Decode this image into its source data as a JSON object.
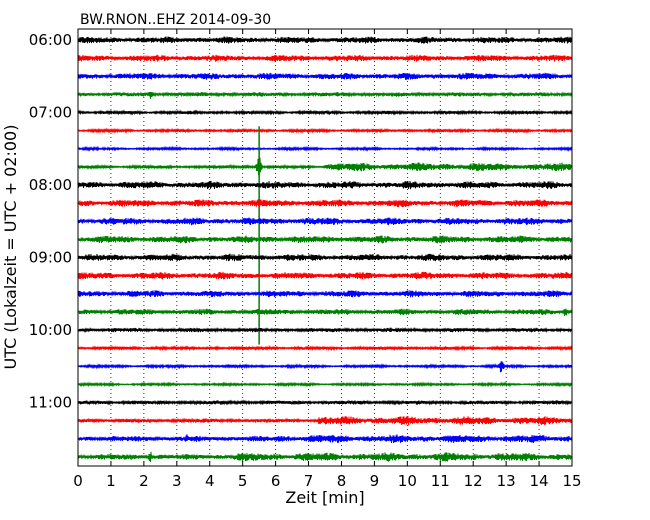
{
  "chart_data": {
    "type": "line",
    "title": "BW.RNON..EHZ 2014-09-30",
    "xlabel": "Zeit  [min]",
    "ylabel": "UTC (Lokalzeit = UTC + 02:00)",
    "xlim": [
      0,
      15
    ],
    "x_ticks": [
      "0",
      "1",
      "2",
      "3",
      "4",
      "5",
      "6",
      "7",
      "8",
      "9",
      "10",
      "11",
      "12",
      "13",
      "14",
      "15"
    ],
    "y_ticks": [
      "06:00",
      "07:00",
      "08:00",
      "09:00",
      "10:00",
      "11:00"
    ],
    "grid": "vertical dotted",
    "colors": [
      "#000000",
      "#ff0000",
      "#0000ff",
      "#008000"
    ],
    "traces": [
      {
        "time": "06:00",
        "color": "#000000",
        "amplitude": 0.34
      },
      {
        "time": "06:15",
        "color": "#ff0000",
        "amplitude": 0.34
      },
      {
        "time": "06:30",
        "color": "#0000ff",
        "amplitude": 0.34
      },
      {
        "time": "06:45",
        "color": "#008000",
        "amplitude": 0.22,
        "events": [
          {
            "minute": 2.2,
            "amplitude": 0.7
          }
        ]
      },
      {
        "time": "07:00",
        "color": "#000000",
        "amplitude": 0.16
      },
      {
        "time": "07:15",
        "color": "#ff0000",
        "amplitude": 0.14
      },
      {
        "time": "07:30",
        "color": "#0000ff",
        "amplitude": 0.12
      },
      {
        "time": "07:45",
        "color": "#008000",
        "amplitude": 0.16,
        "burst": {
          "start": 7.5,
          "end": 15,
          "amplitude": 0.42
        },
        "events": [
          {
            "minute": 5.5,
            "amplitude": 1.4
          }
        ]
      },
      {
        "time": "08:00",
        "color": "#000000",
        "amplitude": 0.38
      },
      {
        "time": "08:15",
        "color": "#ff0000",
        "amplitude": 0.38
      },
      {
        "time": "08:30",
        "color": "#0000ff",
        "amplitude": 0.38
      },
      {
        "time": "08:45",
        "color": "#008000",
        "amplitude": 0.38
      },
      {
        "time": "09:00",
        "color": "#000000",
        "amplitude": 0.36
      },
      {
        "time": "09:15",
        "color": "#ff0000",
        "amplitude": 0.36
      },
      {
        "time": "09:30",
        "color": "#0000ff",
        "amplitude": 0.34
      },
      {
        "time": "09:45",
        "color": "#008000",
        "amplitude": 0.3,
        "events": [
          {
            "minute": 14.8,
            "amplitude": 0.6
          }
        ]
      },
      {
        "time": "10:00",
        "color": "#000000",
        "amplitude": 0.22
      },
      {
        "time": "10:15",
        "color": "#ff0000",
        "amplitude": 0.16
      },
      {
        "time": "10:30",
        "color": "#0000ff",
        "amplitude": 0.13,
        "events": [
          {
            "minute": 12.85,
            "amplitude": 0.8
          }
        ]
      },
      {
        "time": "10:45",
        "color": "#008000",
        "amplitude": 0.12
      },
      {
        "time": "11:00",
        "color": "#000000",
        "amplitude": 0.2
      },
      {
        "time": "11:15",
        "color": "#ff0000",
        "amplitude": 0.2,
        "burst": {
          "start": 7.3,
          "end": 15,
          "amplitude": 0.44
        }
      },
      {
        "time": "11:30",
        "color": "#0000ff",
        "amplitude": 0.3,
        "burst": {
          "start": 6.0,
          "end": 15,
          "amplitude": 0.42
        },
        "events": [
          {
            "minute": 3.3,
            "amplitude": 0.55
          }
        ]
      },
      {
        "time": "11:45",
        "color": "#008000",
        "amplitude": 0.3,
        "burst": {
          "start": 4.7,
          "end": 15,
          "amplitude": 0.44
        },
        "events": [
          {
            "minute": 2.2,
            "amplitude": 0.65
          }
        ]
      }
    ]
  }
}
